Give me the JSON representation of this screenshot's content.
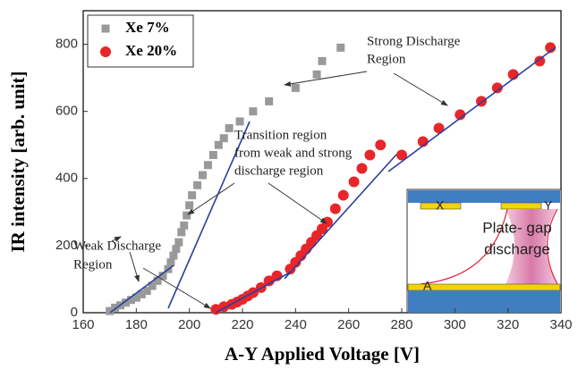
{
  "chart_data": {
    "type": "scatter",
    "xlabel": "A-Y Applied Voltage [V]",
    "ylabel": "IR intensity [arb. unit]",
    "xlim": [
      160,
      340
    ],
    "ylim": [
      0,
      900
    ],
    "xticks": [
      160,
      180,
      200,
      220,
      240,
      260,
      280,
      300,
      320,
      340
    ],
    "yticks": [
      0,
      200,
      400,
      600,
      800
    ],
    "legend": "upper left",
    "annotations": [
      "Strong Discharge",
      "Region",
      "Transition region",
      "from weak and strong",
      "discharge region",
      "Weak Discharge",
      "Region",
      "X",
      "Y",
      "A",
      "Plate- gap",
      "discharge"
    ],
    "series": [
      {
        "name": "Xe 7%",
        "color": "#999999",
        "marker": "square",
        "x": [
          170,
          172,
          174,
          176,
          178,
          180,
          182,
          184,
          186,
          188,
          190,
          192,
          193,
          194,
          195,
          196,
          197,
          198,
          199,
          200,
          201,
          203,
          205,
          207,
          209,
          211,
          213,
          215,
          219,
          224,
          230,
          240,
          248,
          250,
          257
        ],
        "y": [
          5,
          15,
          22,
          30,
          38,
          45,
          55,
          65,
          80,
          95,
          110,
          130,
          150,
          170,
          190,
          210,
          240,
          260,
          290,
          320,
          350,
          380,
          410,
          440,
          470,
          500,
          520,
          550,
          570,
          600,
          630,
          670,
          710,
          750,
          790
        ]
      },
      {
        "name": "Xe 20%",
        "color": "#e8262a",
        "marker": "circle",
        "x": [
          210,
          213,
          216,
          218,
          220,
          222,
          224,
          227,
          230,
          233,
          238,
          240,
          242,
          244,
          246,
          248,
          250,
          252,
          255,
          258,
          262,
          265,
          268,
          272,
          280,
          288,
          294,
          302,
          310,
          316,
          322,
          332,
          336
        ],
        "y": [
          10,
          18,
          25,
          32,
          40,
          50,
          60,
          75,
          95,
          110,
          130,
          150,
          170,
          190,
          210,
          230,
          250,
          270,
          310,
          350,
          390,
          430,
          470,
          500,
          470,
          510,
          550,
          590,
          630,
          670,
          710,
          750,
          790
        ]
      }
    ]
  }
}
